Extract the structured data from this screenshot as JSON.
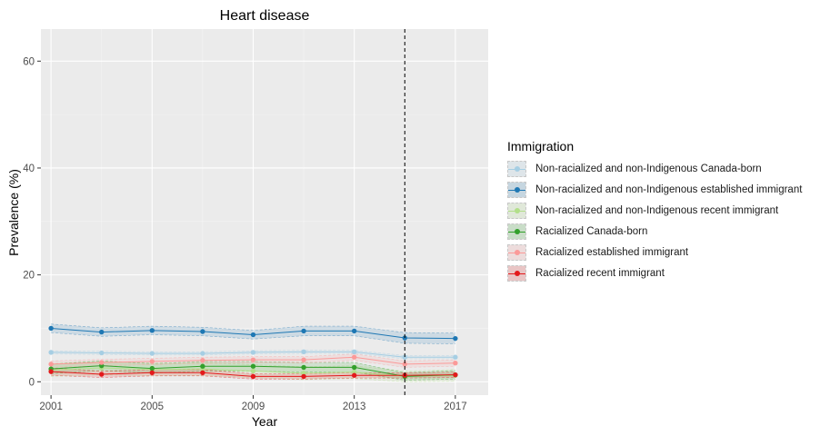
{
  "chart_data": {
    "type": "line",
    "title": "Heart disease",
    "xlabel": "Year",
    "ylabel": "Prevalence (%)",
    "xlim": [
      2000.6,
      2018.3
    ],
    "ylim": [
      -2.5,
      66
    ],
    "x_ticks": [
      2001,
      2005,
      2009,
      2013,
      2017
    ],
    "y_ticks": [
      0,
      20,
      40,
      60
    ],
    "grid": true,
    "legend_title": "Immigration",
    "legend_position": "right",
    "vertical_reference_line": 2015,
    "x": [
      2001,
      2003,
      2005,
      2007,
      2009,
      2011,
      2013,
      2015,
      2017
    ],
    "series": [
      {
        "name": "Non-racialized and non-Indigenous Canada-born",
        "color": "#a6cee3",
        "values": [
          5.5,
          5.4,
          5.3,
          5.3,
          5.5,
          5.6,
          5.6,
          4.6,
          4.6
        ],
        "lower": [
          5.2,
          5.1,
          5.0,
          5.0,
          5.2,
          5.3,
          5.3,
          4.3,
          4.3
        ],
        "upper": [
          5.8,
          5.7,
          5.6,
          5.6,
          5.8,
          5.9,
          5.9,
          4.9,
          4.9
        ]
      },
      {
        "name": "Non-racialized and non-Indigenous established immigrant",
        "color": "#1f78b4",
        "values": [
          10.0,
          9.3,
          9.6,
          9.4,
          8.8,
          9.5,
          9.5,
          8.2,
          8.1
        ],
        "lower": [
          9.2,
          8.5,
          8.8,
          8.6,
          8.0,
          8.6,
          8.6,
          7.2,
          7.1
        ],
        "upper": [
          10.8,
          10.1,
          10.4,
          10.2,
          9.6,
          10.4,
          10.4,
          9.2,
          9.1
        ]
      },
      {
        "name": "Non-racialized and non-Indigenous recent immigrant",
        "color": "#b2df8a",
        "values": [
          2.2,
          2.6,
          2.3,
          2.4,
          2.0,
          1.6,
          1.8,
          1.0,
          1.2
        ],
        "lower": [
          1.0,
          1.3,
          1.1,
          1.2,
          0.8,
          0.4,
          0.6,
          0.0,
          0.1
        ],
        "upper": [
          3.4,
          3.9,
          3.5,
          3.6,
          3.2,
          2.8,
          3.0,
          2.0,
          2.3
        ]
      },
      {
        "name": "Racialized Canada-born",
        "color": "#33a02c",
        "values": [
          2.4,
          3.0,
          2.5,
          2.9,
          2.9,
          2.7,
          2.7,
          1.0,
          1.3
        ],
        "lower": [
          1.5,
          2.1,
          1.6,
          2.0,
          2.0,
          1.8,
          1.8,
          0.3,
          0.5
        ],
        "upper": [
          3.3,
          3.9,
          3.4,
          3.8,
          3.8,
          3.6,
          3.6,
          1.7,
          2.1
        ]
      },
      {
        "name": "Racialized established immigrant",
        "color": "#fb9a99",
        "values": [
          3.3,
          3.6,
          3.8,
          4.0,
          4.1,
          4.1,
          4.6,
          3.3,
          3.5
        ],
        "lower": [
          2.7,
          3.0,
          3.2,
          3.4,
          3.5,
          3.5,
          4.0,
          2.7,
          2.9
        ],
        "upper": [
          3.9,
          4.2,
          4.4,
          4.6,
          4.7,
          4.7,
          5.2,
          3.9,
          4.1
        ]
      },
      {
        "name": "Racialized recent immigrant",
        "color": "#e31a1c",
        "values": [
          1.9,
          1.4,
          1.7,
          1.7,
          1.0,
          1.0,
          1.2,
          1.2,
          1.3
        ],
        "lower": [
          1.2,
          0.8,
          1.1,
          1.1,
          0.5,
          0.5,
          0.7,
          0.7,
          0.8
        ],
        "upper": [
          2.6,
          2.0,
          2.3,
          2.3,
          1.5,
          1.5,
          1.7,
          1.7,
          1.8
        ]
      }
    ]
  }
}
